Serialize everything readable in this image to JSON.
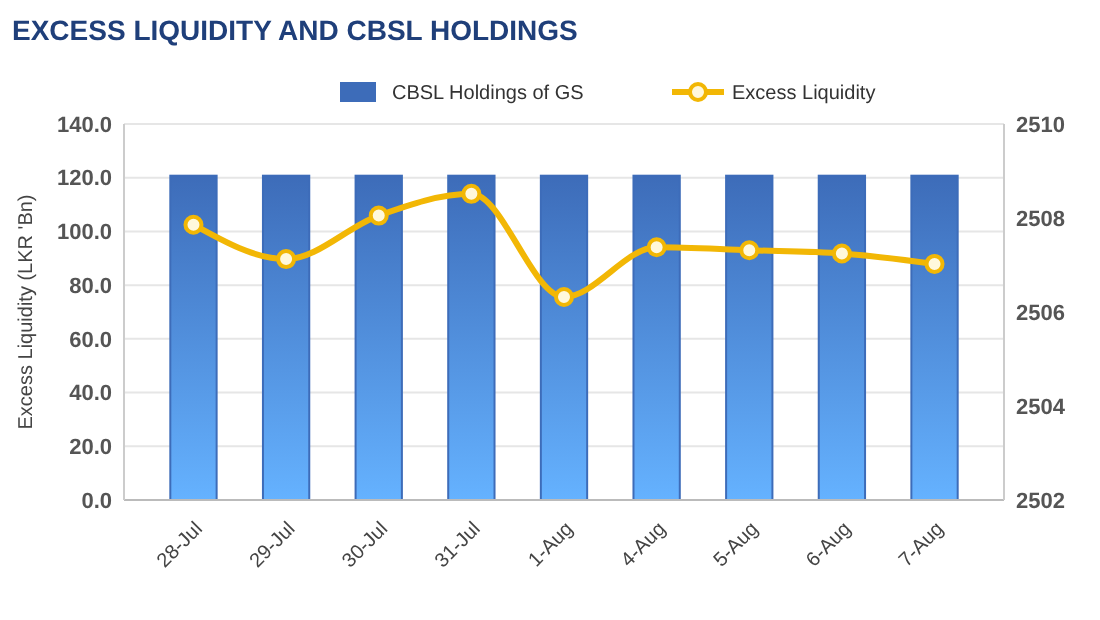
{
  "chart_data": {
    "type": "bar",
    "title": "EXCESS LIQUIDITY AND CBSL HOLDINGS",
    "ylabel": "Excess Liquidity (LKR 'Bn)",
    "categories": [
      "28-Jul",
      "29-Jul",
      "30-Jul",
      "31-Jul",
      "1-Aug",
      "4-Aug",
      "5-Aug",
      "6-Aug",
      "7-Aug"
    ],
    "series": [
      {
        "name": "CBSL Holdings of GS",
        "axis": "y2",
        "color": "#3d6cb9",
        "values": [
          2508.9,
          2508.9,
          2508.9,
          2508.9,
          2508.9,
          2508.9,
          2508.9,
          2508.9,
          2508.9
        ]
      },
      {
        "name": "Excess Liquidity",
        "type": "line",
        "color": "#f2b705",
        "values": [
          102.5,
          89.7,
          105.9,
          114.0,
          75.6,
          94.1,
          93.0,
          91.8,
          87.9
        ]
      }
    ],
    "ylim": [
      0,
      140
    ],
    "yticks": [
      {
        "value": 0,
        "label": "0.0"
      },
      {
        "value": 20,
        "label": "20.0"
      },
      {
        "value": 40,
        "label": "40.0"
      },
      {
        "value": 60,
        "label": "60.0"
      },
      {
        "value": 80,
        "label": "80.0"
      },
      {
        "value": 100,
        "label": "100.0"
      },
      {
        "value": 120,
        "label": "120.0"
      },
      {
        "value": 140,
        "label": "140.0"
      }
    ],
    "y2lim": [
      2502,
      2510
    ],
    "y2ticks": [
      2502,
      2504,
      2506,
      2508,
      2510
    ],
    "grid": "y",
    "legend": "top",
    "marker": "circle"
  }
}
